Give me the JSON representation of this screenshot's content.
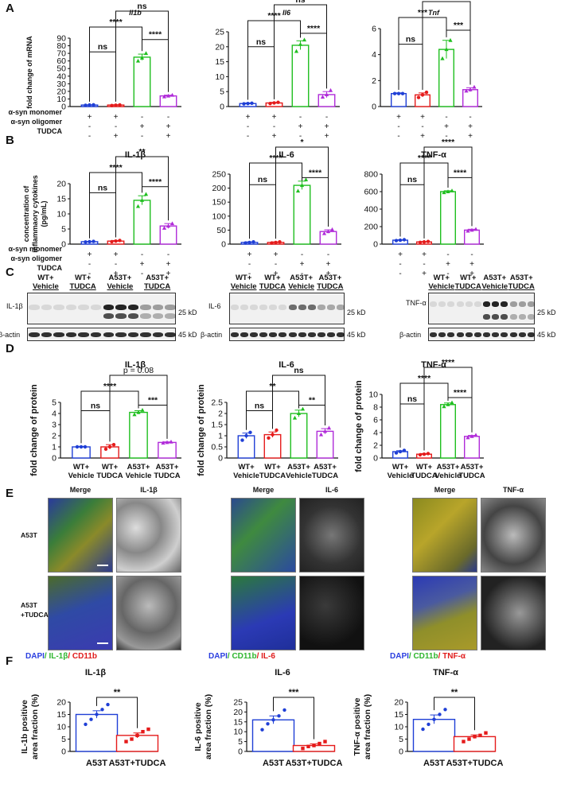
{
  "panels": {
    "A": {
      "label": "A",
      "ylabel": "fold change of mRNA",
      "row_labels": [
        "α-syn monomer",
        "α-syn oligomer",
        "TUDCA"
      ],
      "signs": [
        [
          "+",
          "+",
          "-",
          "-"
        ],
        [
          "-",
          "-",
          "+",
          "+"
        ],
        [
          "-",
          "+",
          "-",
          "+"
        ]
      ],
      "colors": [
        "#1f3fd6",
        "#e51b1b",
        "#1fbf1f",
        "#b02bd9"
      ]
    },
    "B": {
      "label": "B",
      "ylabel": "concentration of inflammaory cytokines (pg/mL)",
      "row_labels": [
        "α-syn monomer",
        "α-syn oligomer",
        "TUDCA"
      ],
      "signs": [
        [
          "+",
          "+",
          "-",
          "-"
        ],
        [
          "-",
          "-",
          "+",
          "+"
        ],
        [
          "-",
          "+",
          "-",
          "+"
        ]
      ]
    },
    "C": {
      "label": "C",
      "headers": [
        [
          "WT+",
          "Vehicle"
        ],
        [
          "WT+",
          "TUDCA"
        ],
        [
          "A53T+",
          "Vehicle"
        ],
        [
          "A53T+",
          "TUDCA"
        ]
      ],
      "blots": [
        {
          "target": "IL-1β",
          "kd": "25 kD",
          "actin": "β-actin",
          "actin_kd": "45 kD"
        },
        {
          "target": "IL-6",
          "kd": "25 kD",
          "actin": "β-actin",
          "actin_kd": "45 kD"
        },
        {
          "target": "TNF-α",
          "kd": "25 kD",
          "actin": "β-actin",
          "actin_kd": "45 kD"
        }
      ]
    },
    "D": {
      "label": "D",
      "ylabel": "fold change of protein",
      "xlabels": [
        [
          "WT+",
          "Vehicle"
        ],
        [
          "WT+",
          "TUDCA"
        ],
        [
          "A53T+",
          "Vehicle"
        ],
        [
          "A53T+",
          "TUDCA"
        ]
      ]
    },
    "E": {
      "label": "E",
      "merge": "Merge",
      "row1": "A53T",
      "row2a": "A53T",
      "row2b": "+TUDCA",
      "groups": [
        {
          "channel": "IL-1β",
          "legend": [
            {
              "t": "DAPI",
              "c": "#2b3fe0"
            },
            {
              "t": "/ IL-1β",
              "c": "#2fb52f"
            },
            {
              "t": "/ CD11b",
              "c": "#e01b1b"
            }
          ]
        },
        {
          "channel": "IL-6",
          "legend": [
            {
              "t": "DAPI",
              "c": "#2b3fe0"
            },
            {
              "t": "/ CD11b",
              "c": "#2fb52f"
            },
            {
              "t": "/ IL-6",
              "c": "#e01b1b"
            }
          ]
        },
        {
          "channel": "TNF-α",
          "legend": [
            {
              "t": "DAPI",
              "c": "#2b3fe0"
            },
            {
              "t": "/ CD11b",
              "c": "#2fb52f"
            },
            {
              "t": "/ TNF-α",
              "c": "#e01b1b"
            }
          ]
        }
      ]
    },
    "F": {
      "label": "F",
      "categories": [
        "A53T",
        "A53T+TUDCA"
      ]
    }
  },
  "chart_data": [
    {
      "panel": "A",
      "type": "bar",
      "title": "Il1b",
      "categories": [
        "1",
        "2",
        "3",
        "4"
      ],
      "values": [
        2,
        2,
        65,
        14
      ],
      "points": [
        [
          1.6,
          2.1,
          2.3
        ],
        [
          1.3,
          1.8,
          2.2
        ],
        [
          60,
          64,
          70
        ],
        [
          13,
          14,
          15
        ]
      ],
      "errors": [
        0.3,
        0.4,
        4,
        1
      ],
      "ylim": [
        0,
        90
      ],
      "yticks": [
        0,
        10,
        20,
        30,
        40,
        50,
        60,
        70,
        80,
        90
      ],
      "sig": [
        {
          "a": 0,
          "b": 2,
          "label": "****"
        },
        {
          "a": 0,
          "b": 1,
          "label": "ns"
        },
        {
          "a": 2,
          "b": 3,
          "label": "****"
        },
        {
          "a": 1,
          "b": 3,
          "label": "ns"
        }
      ]
    },
    {
      "panel": "A",
      "type": "bar",
      "title": "Il6",
      "categories": [
        "1",
        "2",
        "3",
        "4"
      ],
      "values": [
        1,
        1.2,
        20.5,
        4
      ],
      "points": [
        [
          0.9,
          1.0,
          1.1
        ],
        [
          1.0,
          1.2,
          1.4
        ],
        [
          18.5,
          20.8,
          22.3
        ],
        [
          3.2,
          4.0,
          5.4
        ]
      ],
      "errors": [
        0.2,
        0.2,
        1.5,
        1
      ],
      "ylim": [
        0,
        25
      ],
      "yticks": [
        0,
        5,
        10,
        15,
        20,
        25
      ],
      "sig": [
        {
          "a": 0,
          "b": 2,
          "label": "****"
        },
        {
          "a": 0,
          "b": 1,
          "label": "ns"
        },
        {
          "a": 2,
          "b": 3,
          "label": "****"
        },
        {
          "a": 1,
          "b": 3,
          "label": "ns"
        }
      ]
    },
    {
      "panel": "A",
      "type": "bar",
      "title": "Tnf",
      "categories": [
        "1",
        "2",
        "3",
        "4"
      ],
      "values": [
        1,
        0.9,
        4.4,
        1.3
      ],
      "points": [
        [
          1.0,
          1.0,
          1.0
        ],
        [
          0.7,
          0.9,
          1.1
        ],
        [
          3.7,
          4.4,
          5.1
        ],
        [
          1.2,
          1.3,
          1.5
        ]
      ],
      "errors": [
        0.05,
        0.15,
        0.7,
        0.15
      ],
      "ylim": [
        0,
        6
      ],
      "yticks": [
        0,
        2,
        4,
        6
      ],
      "sig": [
        {
          "a": 0,
          "b": 2,
          "label": "***"
        },
        {
          "a": 0,
          "b": 1,
          "label": "ns"
        },
        {
          "a": 2,
          "b": 3,
          "label": "***"
        },
        {
          "a": 1,
          "b": 3,
          "label": "ns"
        }
      ]
    },
    {
      "panel": "B",
      "type": "bar",
      "title": "IL-1β",
      "categories": [
        "1",
        "2",
        "3",
        "4"
      ],
      "values": [
        0.8,
        1.0,
        14.5,
        6
      ],
      "points": [
        [
          0.7,
          0.8,
          0.9
        ],
        [
          0.8,
          1.0,
          1.2
        ],
        [
          12.5,
          14.5,
          16.5
        ],
        [
          5.3,
          6,
          6.8
        ]
      ],
      "errors": [
        0.1,
        0.2,
        1.5,
        0.8
      ],
      "ylim": [
        0,
        20
      ],
      "yticks": [
        0,
        5,
        10,
        15,
        20
      ],
      "sig": [
        {
          "a": 0,
          "b": 2,
          "label": "****"
        },
        {
          "a": 0,
          "b": 1,
          "label": "ns"
        },
        {
          "a": 2,
          "b": 3,
          "label": "****"
        },
        {
          "a": 1,
          "b": 3,
          "label": "**"
        }
      ]
    },
    {
      "panel": "B",
      "type": "bar",
      "title": "IL-6",
      "categories": [
        "1",
        "2",
        "3",
        "4"
      ],
      "values": [
        6,
        6,
        210,
        45
      ],
      "points": [
        [
          4,
          6,
          8
        ],
        [
          4,
          6,
          8
        ],
        [
          190,
          210,
          230
        ],
        [
          38,
          45,
          52
        ]
      ],
      "errors": [
        2,
        2,
        15,
        6
      ],
      "ylim": [
        0,
        250
      ],
      "yticks": [
        0,
        50,
        100,
        150,
        200,
        250
      ],
      "sig": [
        {
          "a": 0,
          "b": 2,
          "label": "****"
        },
        {
          "a": 0,
          "b": 1,
          "label": "ns"
        },
        {
          "a": 2,
          "b": 3,
          "label": "****"
        },
        {
          "a": 1,
          "b": 3,
          "label": "*"
        }
      ]
    },
    {
      "panel": "B",
      "type": "bar",
      "title": "TNF-α",
      "categories": [
        "1",
        "2",
        "3",
        "4"
      ],
      "values": [
        45,
        25,
        600,
        160
      ],
      "points": [
        [
          40,
          45,
          50
        ],
        [
          20,
          25,
          30
        ],
        [
          590,
          600,
          610
        ],
        [
          150,
          160,
          170
        ]
      ],
      "errors": [
        5,
        5,
        10,
        10
      ],
      "ylim": [
        0,
        800
      ],
      "yticks": [
        0,
        200,
        400,
        600,
        800
      ],
      "sig": [
        {
          "a": 0,
          "b": 2,
          "label": "****"
        },
        {
          "a": 0,
          "b": 1,
          "label": "ns"
        },
        {
          "a": 2,
          "b": 3,
          "label": "****"
        },
        {
          "a": 1,
          "b": 3,
          "label": "****"
        }
      ]
    },
    {
      "panel": "D",
      "type": "bar",
      "title": "IL-1β",
      "categories": [
        "1",
        "2",
        "3",
        "4"
      ],
      "values": [
        1.0,
        1.0,
        4.1,
        1.4
      ],
      "points": [
        [
          1.0,
          1.0,
          1.0
        ],
        [
          0.8,
          1.0,
          1.2
        ],
        [
          3.9,
          4.1,
          4.3
        ],
        [
          1.35,
          1.4,
          1.45
        ]
      ],
      "errors": [
        0.05,
        0.2,
        0.15,
        0.05
      ],
      "ylim": [
        0,
        5
      ],
      "yticks": [
        0,
        1,
        2,
        3,
        4,
        5
      ],
      "sig": [
        {
          "a": 0,
          "b": 2,
          "label": "****"
        },
        {
          "a": 0,
          "b": 1,
          "label": "ns"
        },
        {
          "a": 2,
          "b": 3,
          "label": "***"
        },
        {
          "a": 1,
          "b": 3,
          "label": "p = 0.08"
        }
      ]
    },
    {
      "panel": "D",
      "type": "bar",
      "title": "IL-6",
      "categories": [
        "1",
        "2",
        "3",
        "4"
      ],
      "values": [
        1.0,
        1.05,
        2.0,
        1.2
      ],
      "points": [
        [
          0.8,
          1.0,
          1.15
        ],
        [
          0.9,
          1.05,
          1.25
        ],
        [
          1.8,
          2.0,
          2.2
        ],
        [
          1.05,
          1.2,
          1.35
        ]
      ],
      "errors": [
        0.12,
        0.12,
        0.15,
        0.12
      ],
      "ylim": [
        0,
        2.5
      ],
      "yticks": [
        0,
        0.5,
        1.0,
        1.5,
        2.0,
        2.5
      ],
      "sig": [
        {
          "a": 0,
          "b": 2,
          "label": "**"
        },
        {
          "a": 0,
          "b": 1,
          "label": "ns"
        },
        {
          "a": 2,
          "b": 3,
          "label": "**"
        },
        {
          "a": 1,
          "b": 3,
          "label": "ns"
        }
      ]
    },
    {
      "panel": "D",
      "type": "bar",
      "title": "TNF-α",
      "categories": [
        "1",
        "2",
        "3",
        "4"
      ],
      "values": [
        1.0,
        0.6,
        8.4,
        3.4
      ],
      "points": [
        [
          0.8,
          1.0,
          1.2
        ],
        [
          0.5,
          0.6,
          0.7
        ],
        [
          8.1,
          8.4,
          8.7
        ],
        [
          3.2,
          3.4,
          3.6
        ]
      ],
      "errors": [
        0.15,
        0.1,
        0.25,
        0.15
      ],
      "ylim": [
        0,
        10
      ],
      "yticks": [
        0,
        2,
        4,
        6,
        8,
        10
      ],
      "sig": [
        {
          "a": 0,
          "b": 2,
          "label": "****"
        },
        {
          "a": 0,
          "b": 1,
          "label": "ns"
        },
        {
          "a": 2,
          "b": 3,
          "label": "****"
        },
        {
          "a": 1,
          "b": 3,
          "label": "****"
        }
      ]
    },
    {
      "panel": "F",
      "type": "bar",
      "title": "IL-1β",
      "ylabel": "IL-1b positive area fraction (%)",
      "categories": [
        "A53T",
        "A53T+TUDCA"
      ],
      "values": [
        15,
        6.5
      ],
      "points": [
        [
          11,
          13,
          15,
          17,
          19
        ],
        [
          4,
          5,
          6.5,
          8,
          9
        ]
      ],
      "errors": [
        1.5,
        1.0
      ],
      "ylim": [
        0,
        20
      ],
      "yticks": [
        0,
        5,
        10,
        15,
        20
      ],
      "sig": [
        {
          "a": 0,
          "b": 1,
          "label": "**"
        }
      ]
    },
    {
      "panel": "F",
      "type": "bar",
      "title": "IL-6",
      "ylabel": "IL-6 positive area fraction (%)",
      "categories": [
        "A53T",
        "A53T+TUDCA"
      ],
      "values": [
        16,
        3
      ],
      "points": [
        [
          11,
          14,
          16,
          18,
          21
        ],
        [
          1.5,
          2.5,
          3,
          4,
          5
        ]
      ],
      "errors": [
        2,
        0.8
      ],
      "ylim": [
        0,
        25
      ],
      "yticks": [
        0,
        5,
        10,
        15,
        20,
        25
      ],
      "sig": [
        {
          "a": 0,
          "b": 1,
          "label": "***"
        }
      ]
    },
    {
      "panel": "F",
      "type": "bar",
      "title": "TNF-α",
      "ylabel": "TNF-α positive area fraction (%)",
      "categories": [
        "A53T",
        "A53T+TUDCA"
      ],
      "values": [
        13,
        6
      ],
      "points": [
        [
          9,
          11,
          13,
          15,
          17
        ],
        [
          4,
          5,
          6,
          6.5,
          7.5
        ]
      ],
      "errors": [
        1.8,
        0.7
      ],
      "ylim": [
        0,
        20
      ],
      "yticks": [
        0,
        5,
        10,
        15,
        20
      ],
      "sig": [
        {
          "a": 0,
          "b": 1,
          "label": "**"
        }
      ]
    }
  ]
}
